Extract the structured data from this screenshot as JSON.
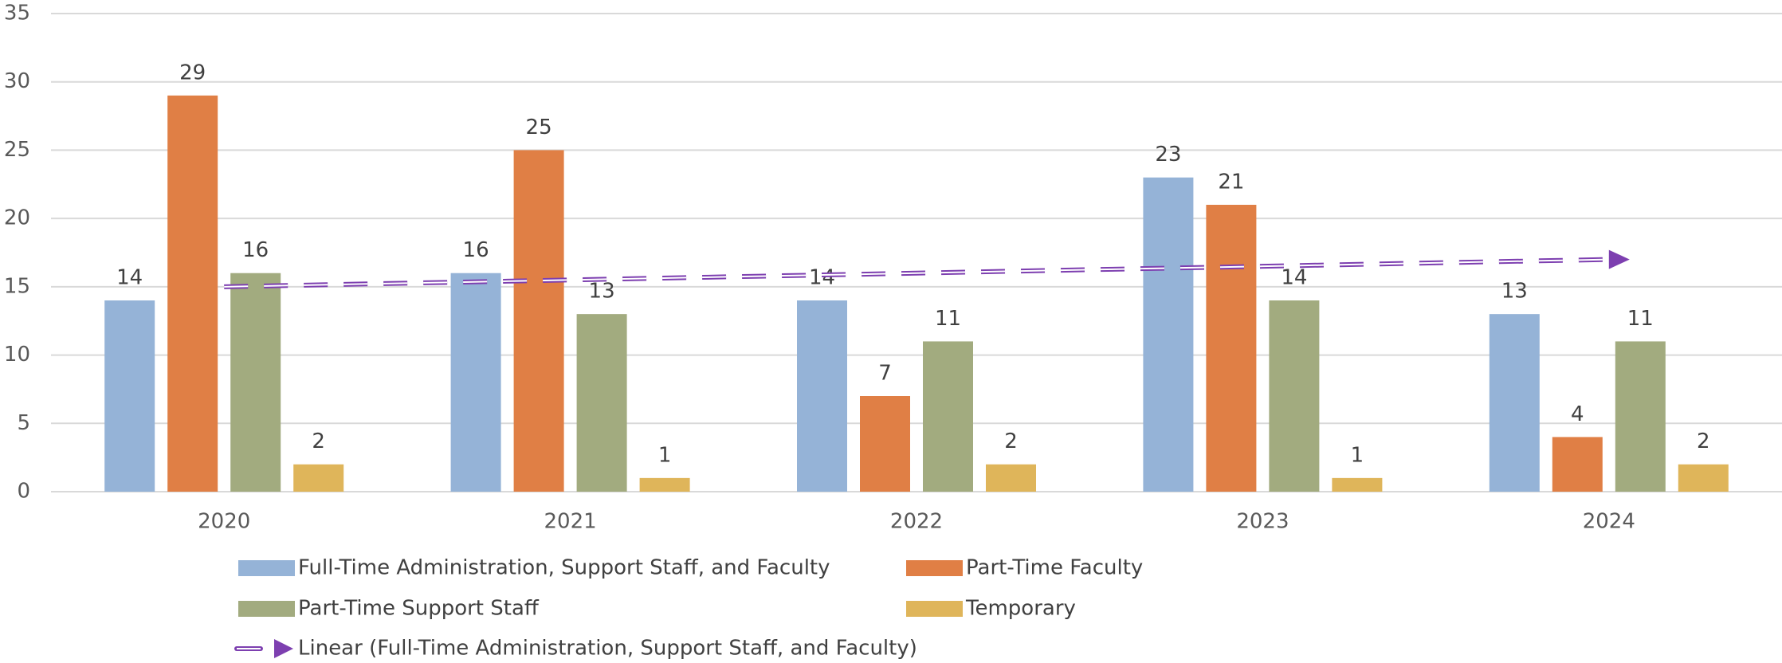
{
  "chart_data": {
    "type": "bar",
    "categories": [
      "2020",
      "2021",
      "2022",
      "2023",
      "2024"
    ],
    "series": [
      {
        "name": "Full-Time Administration, Support Staff, and Faculty",
        "color": "#95b3d7",
        "values": [
          14,
          16,
          14,
          23,
          13
        ]
      },
      {
        "name": "Part-Time Faculty",
        "color": "#e07f45",
        "values": [
          29,
          25,
          7,
          21,
          4
        ]
      },
      {
        "name": "Part-Time Support Staff",
        "color": "#a2ab7f",
        "values": [
          16,
          13,
          11,
          14,
          11
        ]
      },
      {
        "name": "Temporary",
        "color": "#dfb55a",
        "values": [
          2,
          1,
          2,
          1,
          2
        ]
      }
    ],
    "trendline": {
      "name": "Linear (Full-Time Administration, Support Staff, and Faculty)",
      "color": "#7d3fb0",
      "values": [
        15,
        15.5,
        16,
        16.5,
        17
      ]
    },
    "ylim": [
      0,
      35
    ],
    "yticks": [
      0,
      5,
      10,
      15,
      20,
      25,
      30,
      35
    ],
    "grid": true
  }
}
